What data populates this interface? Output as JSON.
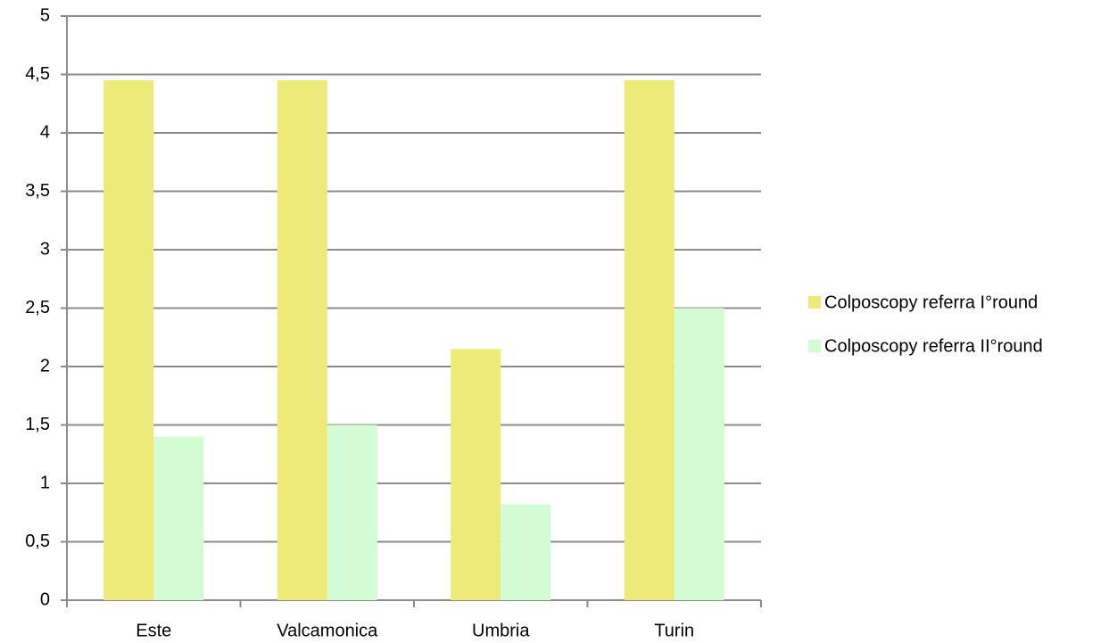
{
  "chart_data": {
    "type": "bar",
    "categories": [
      "Este",
      "Valcamonica",
      "Umbria",
      "Turin"
    ],
    "series": [
      {
        "name": "Colposcopy referra I°round",
        "color": "#eeea7a",
        "values": [
          4.45,
          4.45,
          2.15,
          4.45
        ]
      },
      {
        "name": "Colposcopy referra II°round",
        "color": "#d4fcd4",
        "values": [
          1.4,
          1.5,
          0.82,
          2.5
        ]
      }
    ],
    "ylim": [
      0,
      5
    ],
    "yticks": [
      0,
      {
        "value": 0.5,
        "label": "0,5"
      },
      1,
      {
        "value": 1.5,
        "label": "1,5"
      },
      2,
      {
        "value": 2.5,
        "label": "2,5"
      },
      3,
      {
        "value": 3.5,
        "label": "3,5"
      },
      4,
      {
        "value": 4.5,
        "label": "4,5"
      },
      5
    ],
    "grid": true,
    "legend": "right"
  }
}
